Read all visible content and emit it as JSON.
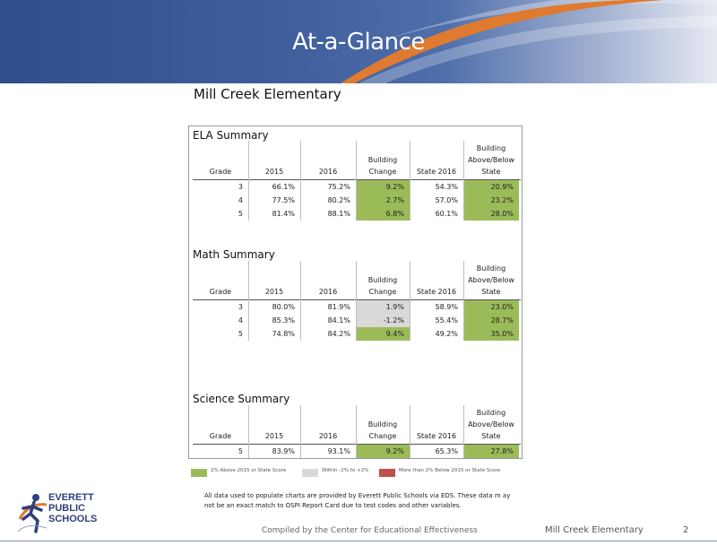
{
  "header": {
    "title": "At-a-Glance"
  },
  "school_name": "Mill Creek Elementary",
  "columns": {
    "grade": "Grade",
    "y2015": "2015",
    "y2016": "2016",
    "change": [
      "Building",
      "Change"
    ],
    "state": "State 2016",
    "above": [
      "Building",
      "Above/Below",
      "State"
    ]
  },
  "sections": [
    {
      "title": "ELA Summary",
      "rows": [
        {
          "grade": "3",
          "y2015": "66.1%",
          "y2016": "75.2%",
          "change": "9.2%",
          "change_status": "green",
          "state": "54.3%",
          "above": "20.9%",
          "above_status": "green"
        },
        {
          "grade": "4",
          "y2015": "77.5%",
          "y2016": "80.2%",
          "change": "2.7%",
          "change_status": "green",
          "state": "57.0%",
          "above": "23.2%",
          "above_status": "green"
        },
        {
          "grade": "5",
          "y2015": "81.4%",
          "y2016": "88.1%",
          "change": "6.8%",
          "change_status": "green",
          "state": "60.1%",
          "above": "28.0%",
          "above_status": "green"
        }
      ]
    },
    {
      "title": "Math Summary",
      "rows": [
        {
          "grade": "3",
          "y2015": "80.0%",
          "y2016": "81.9%",
          "change": "1.9%",
          "change_status": "grey",
          "state": "58.9%",
          "above": "23.0%",
          "above_status": "green"
        },
        {
          "grade": "4",
          "y2015": "85.3%",
          "y2016": "84.1%",
          "change": "-1.2%",
          "change_status": "grey",
          "state": "55.4%",
          "above": "28.7%",
          "above_status": "green"
        },
        {
          "grade": "5",
          "y2015": "74.8%",
          "y2016": "84.2%",
          "change": "9.4%",
          "change_status": "green",
          "state": "49.2%",
          "above": "35.0%",
          "above_status": "green"
        }
      ]
    },
    {
      "title": "Science Summary",
      "rows": [
        {
          "grade": "5",
          "y2015": "83.9%",
          "y2016": "93.1%",
          "change": "9.2%",
          "change_status": "green",
          "state": "65.3%",
          "above": "27.8%",
          "above_status": "green"
        }
      ]
    }
  ],
  "legend": [
    {
      "label": "2% Above 2015 or State Score",
      "color": "#9bbb59"
    },
    {
      "label": "Within -2% to +2%",
      "color": "#d9d9d9"
    },
    {
      "label": "More than 2% Below 2015 or State Score",
      "color": "#c0504d"
    }
  ],
  "footnote": "All data used to populate charts are provided by Everett Public Schools via EDS. These data m ay not be an exact match to OSPI Report Card due to test codes and other variables.",
  "logo": {
    "lines": [
      "EVERETT",
      "PUBLIC",
      "SCHOOLS"
    ]
  },
  "footer": {
    "compiled": "Compiled by the Center for Educational Effectiveness",
    "school": "Mill  Creek Elementary",
    "page": "2"
  }
}
